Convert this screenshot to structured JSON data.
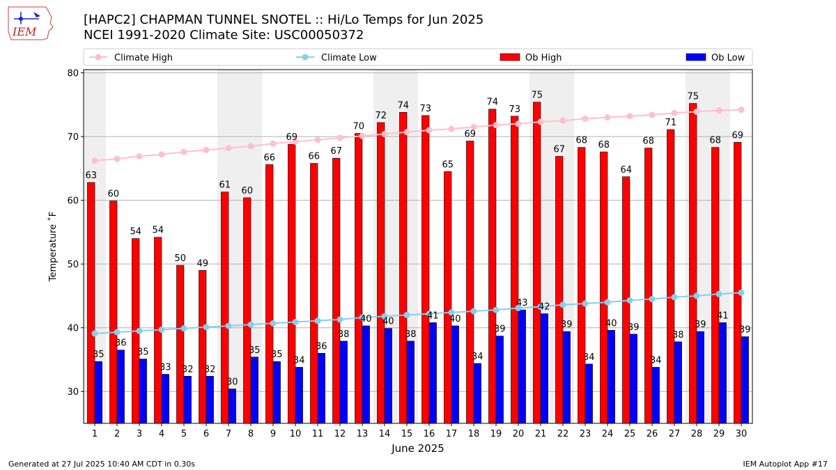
{
  "header": {
    "logo_text": "IEM",
    "title_line1": "[HAPC2] CHAPMAN TUNNEL SNOTEL :: Hi/Lo Temps for Jun 2025",
    "title_line2": "NCEI 1991-2020 Climate Site: USC00050372"
  },
  "footer": {
    "left": "Generated at 27 Jul 2025 10:40 AM CDT in 0.30s",
    "right": "IEM Autoplot App #17"
  },
  "colors": {
    "climate_high": "#ffc0cb",
    "climate_low": "#87ceeb",
    "ob_high": "#ff0000",
    "ob_low": "#0000ff",
    "weekend_shade": "#efefef",
    "grid": "#b0b0b0"
  },
  "chart_data": {
    "type": "bar",
    "xlabel": "June 2025",
    "ylabel": "Temperature ˚F",
    "ylim": [
      25,
      80.5
    ],
    "yticks": [
      30,
      40,
      50,
      60,
      70,
      80
    ],
    "grid": "horizontal",
    "legend_position": "top",
    "categories": [
      "1",
      "2",
      "3",
      "4",
      "5",
      "6",
      "7",
      "8",
      "9",
      "10",
      "11",
      "12",
      "13",
      "14",
      "15",
      "16",
      "17",
      "18",
      "19",
      "20",
      "21",
      "22",
      "23",
      "24",
      "25",
      "26",
      "27",
      "28",
      "29",
      "30"
    ],
    "shaded_days": [
      1,
      7,
      8,
      14,
      15,
      21,
      22,
      28,
      29
    ],
    "series": [
      {
        "name": "Climate High",
        "kind": "line",
        "values": [
          66.2,
          66.5,
          66.9,
          67.2,
          67.6,
          67.9,
          68.2,
          68.5,
          68.9,
          69.2,
          69.5,
          69.8,
          70.1,
          70.4,
          70.7,
          71.0,
          71.2,
          71.5,
          71.8,
          72.0,
          72.3,
          72.5,
          72.8,
          73.0,
          73.2,
          73.4,
          73.7,
          73.9,
          74.1,
          74.2
        ]
      },
      {
        "name": "Climate Low",
        "kind": "line",
        "values": [
          39.1,
          39.3,
          39.5,
          39.7,
          39.9,
          40.1,
          40.3,
          40.5,
          40.7,
          40.9,
          41.1,
          41.3,
          41.6,
          41.8,
          42.0,
          42.2,
          42.4,
          42.6,
          42.8,
          43.1,
          43.3,
          43.6,
          43.8,
          44.0,
          44.3,
          44.5,
          44.8,
          45.0,
          45.3,
          45.5
        ]
      },
      {
        "name": "Ob High",
        "kind": "bar",
        "values": [
          62.8,
          59.9,
          54.0,
          54.2,
          49.8,
          49.0,
          61.3,
          60.4,
          65.6,
          68.8,
          65.8,
          66.6,
          70.5,
          72.2,
          73.8,
          73.3,
          64.5,
          69.3,
          74.3,
          73.2,
          75.4,
          66.9,
          68.3,
          67.6,
          63.7,
          68.2,
          71.1,
          75.2,
          68.3,
          69.1
        ],
        "labels": [
          "63",
          "60",
          "54",
          "54",
          "50",
          "49",
          "61",
          "60",
          "66",
          "69",
          "66",
          "67",
          "70",
          "72",
          "74",
          "73",
          "65",
          "69",
          "74",
          "73",
          "75",
          "67",
          "68",
          "68",
          "64",
          "68",
          "71",
          "75",
          "68",
          "69"
        ]
      },
      {
        "name": "Ob Low",
        "kind": "bar",
        "values": [
          34.7,
          36.5,
          35.1,
          32.7,
          32.4,
          32.4,
          30.4,
          35.4,
          34.7,
          33.8,
          36.0,
          37.9,
          40.3,
          39.9,
          37.9,
          40.8,
          40.3,
          34.4,
          38.7,
          42.8,
          42.2,
          39.4,
          34.3,
          39.6,
          39.0,
          33.8,
          37.8,
          39.4,
          40.8,
          38.6
        ],
        "labels": [
          "35",
          "36",
          "35",
          "33",
          "32",
          "32",
          "30",
          "35",
          "35",
          "34",
          "36",
          "38",
          "40",
          "40",
          "38",
          "41",
          "40",
          "34",
          "39",
          "43",
          "42",
          "39",
          "34",
          "40",
          "39",
          "34",
          "38",
          "39",
          "41",
          "39"
        ]
      }
    ]
  }
}
